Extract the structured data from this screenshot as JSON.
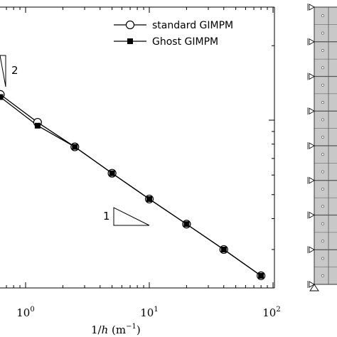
{
  "chart_data": {
    "type": "line",
    "xscale": "log",
    "yscale": "log",
    "xlim": [
      0.27,
      120
    ],
    "x_ticks": [
      {
        "value": 1,
        "base": "10",
        "exp": "0"
      },
      {
        "value": 10,
        "base": "10",
        "exp": "1"
      },
      {
        "value": 100,
        "base": "10",
        "exp": "2"
      }
    ],
    "xlabel": {
      "main": "1/",
      "var": "h",
      "unit_open": " (m",
      "unit_exp": "−1",
      "unit_close": ")"
    },
    "grid": false,
    "legend": {
      "placement": "top-right",
      "entries": [
        {
          "name": "standard GIMPM",
          "marker": "open-circle",
          "line": "#000000"
        },
        {
          "name": "Ghost GIMPM",
          "marker": "filled-square",
          "line": "#000000"
        }
      ]
    },
    "series": [
      {
        "name": "standard GIMPM",
        "marker": "open-circle",
        "x": [
          0.625,
          1.25,
          2.5,
          5,
          10,
          20,
          40,
          80
        ],
        "y": [
          0.000127,
          9.8e-05,
          7.8e-05,
          6.1e-05,
          4.8e-05,
          3.8e-05,
          3e-05,
          2.35e-05
        ]
      },
      {
        "name": "Ghost GIMPM",
        "marker": "filled-square",
        "x": [
          0.625,
          1.25,
          2.5,
          5,
          10,
          20,
          40,
          80
        ],
        "y": [
          0.000124,
          9.5e-05,
          7.8e-05,
          6.1e-05,
          4.8e-05,
          3.8e-05,
          3e-05,
          2.35e-05
        ]
      }
    ],
    "slope_triangles": [
      {
        "label": "2"
      },
      {
        "label": "1"
      }
    ]
  },
  "mesh_figure": {
    "columns": 2,
    "rows": 8,
    "fill": "#c8c8c8"
  },
  "colors": {
    "line": "#000000",
    "mesh_fill": "#c8c8c8",
    "mesh_line": "#555555"
  }
}
